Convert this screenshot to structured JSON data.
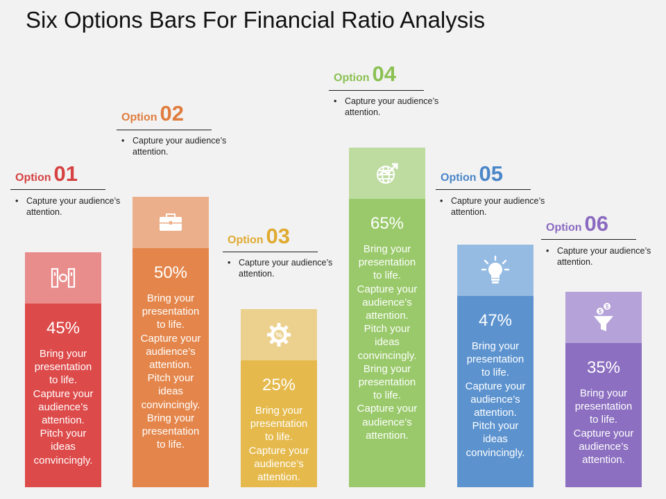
{
  "title": "Six Options Bars For Financial Ratio Analysis",
  "bullet_char": "•",
  "options": [
    {
      "word": "Option",
      "num": "01",
      "bullet": "Capture your audience’s attention.",
      "percent": "45%",
      "value": 45,
      "text": "Bring your presentation to life. Capture your audience’s attention. Pitch your ideas convincingly.",
      "color_main": "#dd4a4a",
      "color_top": "#e98c8c",
      "label_color": "#d64141",
      "icon": "binders-icon"
    },
    {
      "word": "Option",
      "num": "02",
      "bullet": "Capture your audience’s attention.",
      "percent": "50%",
      "value": 50,
      "text": "Bring your presentation to life. Capture your audience’s attention. Pitch your ideas convincingly. Bring your presentation to life.",
      "color_main": "#e4864b",
      "color_top": "#ebaf8b",
      "label_color": "#e07c3e",
      "icon": "briefcase-icon"
    },
    {
      "word": "Option",
      "num": "03",
      "bullet": "Capture your audience’s attention.",
      "percent": "25%",
      "value": 25,
      "text": "Bring your presentation to life. Capture your audience’s attention.",
      "color_main": "#e5b94b",
      "color_top": "#ecd18e",
      "label_color": "#e0aa30",
      "icon": "percent-gear-icon"
    },
    {
      "word": "Option",
      "num": "04",
      "bullet": "Capture your audience’s attention.",
      "percent": "65%",
      "value": 65,
      "text": "Bring your presentation to life. Capture your audience’s attention. Pitch your ideas convincingly. Bring your presentation to life. Capture your audience’s attention.",
      "color_main": "#99c96a",
      "color_top": "#bedba0",
      "label_color": "#8bc152",
      "icon": "globe-growth-icon"
    },
    {
      "word": "Option",
      "num": "05",
      "bullet": "Capture your audience’s attention.",
      "percent": "47%",
      "value": 47,
      "text": "Bring your presentation to life. Capture your audience’s attention. Pitch your ideas convincingly.",
      "color_main": "#5c93cf",
      "color_top": "#95bbe3",
      "label_color": "#4a86c8",
      "icon": "lightbulb-icon"
    },
    {
      "word": "Option",
      "num": "06",
      "bullet": "Capture your audience’s attention.",
      "percent": "35%",
      "value": 35,
      "text": "Bring your presentation to life. Capture your audience’s attention.",
      "color_main": "#8c6fc0",
      "color_top": "#b5a2d8",
      "label_color": "#8a6ac0",
      "icon": "money-funnel-icon"
    }
  ]
}
